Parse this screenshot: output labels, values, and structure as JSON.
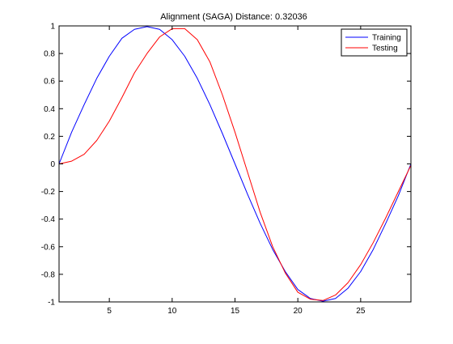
{
  "chart_data": {
    "type": "line",
    "title": "Alignment (SAGA) Distance:  0.32036",
    "xlabel": "",
    "ylabel": "",
    "xlim": [
      1,
      29
    ],
    "ylim": [
      -1,
      1
    ],
    "xticks": [
      5,
      10,
      15,
      20,
      25
    ],
    "yticks": [
      -1,
      -0.8,
      -0.6,
      -0.4,
      -0.2,
      0,
      0.2,
      0.4,
      0.6,
      0.8,
      1
    ],
    "ytick_labels": [
      "-1",
      "-0.8",
      "-0.6",
      "-0.4",
      "-0.2",
      "0",
      "0.2",
      "0.4",
      "0.6",
      "0.8",
      "1"
    ],
    "grid": false,
    "legend_position": "top-right",
    "series": [
      {
        "name": "Training",
        "color": "#0000ff",
        "x": [
          1,
          2,
          3,
          4,
          5,
          6,
          7,
          8,
          9,
          10,
          11,
          12,
          13,
          14,
          15,
          16,
          17,
          18,
          19,
          20,
          21,
          22,
          23,
          24,
          25,
          26,
          27,
          28,
          29
        ],
        "values": [
          0,
          0.23,
          0.43,
          0.62,
          0.78,
          0.91,
          0.975,
          0.995,
          0.975,
          0.9,
          0.78,
          0.62,
          0.43,
          0.22,
          0,
          -0.22,
          -0.43,
          -0.62,
          -0.78,
          -0.91,
          -0.975,
          -0.995,
          -0.975,
          -0.9,
          -0.78,
          -0.62,
          -0.43,
          -0.23,
          0
        ]
      },
      {
        "name": "Testing",
        "color": "#ff0000",
        "x": [
          1,
          2,
          3,
          4,
          5,
          6,
          7,
          8,
          9,
          10,
          11,
          12,
          13,
          14,
          15,
          16,
          17,
          18,
          19,
          20,
          21,
          22,
          23,
          24,
          25,
          26,
          27,
          28,
          29
        ],
        "values": [
          0,
          0.02,
          0.07,
          0.17,
          0.31,
          0.48,
          0.66,
          0.8,
          0.92,
          0.98,
          0.98,
          0.9,
          0.74,
          0.5,
          0.23,
          -0.06,
          -0.35,
          -0.6,
          -0.79,
          -0.93,
          -0.98,
          -0.99,
          -0.95,
          -0.86,
          -0.73,
          -0.57,
          -0.39,
          -0.2,
          -0.01
        ]
      }
    ]
  }
}
